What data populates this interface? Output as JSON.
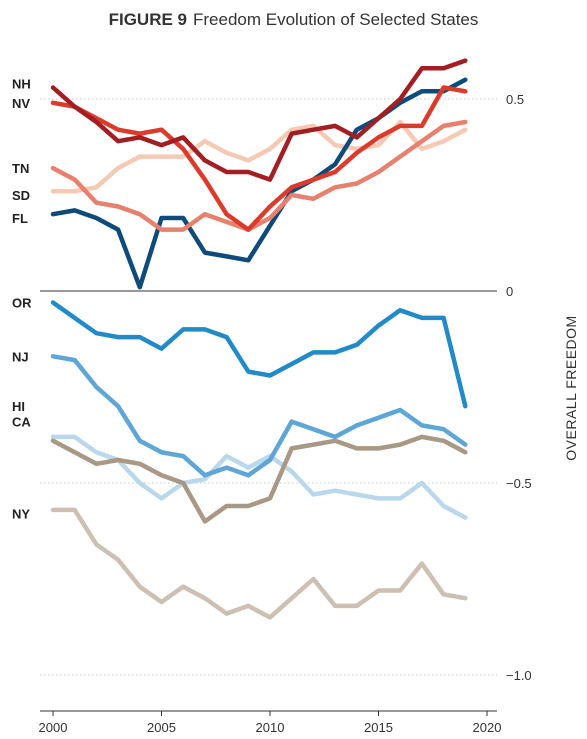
{
  "figure_label": "FIGURE 9",
  "title": "Freedom Evolution of Selected States",
  "chart_data": {
    "type": "line",
    "title": "FIGURE 9 Freedom Evolution of Selected States",
    "xlabel": "",
    "ylabel": "OVERALL FREEDOM",
    "xlim": [
      1999.8,
      2019.8
    ],
    "ylim": [
      -1.05,
      0.62
    ],
    "x_ticks": [
      2000,
      2005,
      2010,
      2015,
      2020
    ],
    "x_tick_labels": [
      "2000",
      "2005",
      "2010",
      "2015",
      "2020"
    ],
    "y_ticks": [
      0.5,
      0,
      -0.5,
      -1.0
    ],
    "y_tick_labels": [
      "0.5",
      "0",
      "−0.5",
      "−1.0"
    ],
    "grid": "horizontal",
    "legend": "state labels at left",
    "x": [
      2000,
      2001,
      2002,
      2003,
      2004,
      2005,
      2006,
      2007,
      2008,
      2009,
      2010,
      2011,
      2012,
      2013,
      2014,
      2015,
      2016,
      2017,
      2018,
      2019
    ],
    "series": [
      {
        "name": "NY",
        "color": "#cdbfb1",
        "values": [
          -0.57,
          -0.57,
          -0.66,
          -0.7,
          -0.77,
          -0.81,
          -0.77,
          -0.8,
          -0.84,
          -0.82,
          -0.85,
          -0.8,
          -0.75,
          -0.82,
          -0.82,
          -0.78,
          -0.78,
          -0.71,
          -0.79,
          -0.8
        ]
      },
      {
        "name": "HI",
        "color": "#b9d8ec",
        "values": [
          -0.38,
          -0.38,
          -0.42,
          -0.44,
          -0.5,
          -0.54,
          -0.5,
          -0.49,
          -0.43,
          -0.46,
          -0.43,
          -0.47,
          -0.53,
          -0.52,
          -0.53,
          -0.54,
          -0.54,
          -0.5,
          -0.56,
          -0.59
        ]
      },
      {
        "name": "CA",
        "color": "#a89885",
        "values": [
          -0.39,
          -0.42,
          -0.45,
          -0.44,
          -0.45,
          -0.48,
          -0.5,
          -0.6,
          -0.56,
          -0.56,
          -0.54,
          -0.41,
          -0.4,
          -0.39,
          -0.41,
          -0.41,
          -0.4,
          -0.38,
          -0.39,
          -0.42
        ]
      },
      {
        "name": "NJ",
        "color": "#5ea6d6",
        "values": [
          -0.17,
          -0.18,
          -0.25,
          -0.3,
          -0.39,
          -0.42,
          -0.43,
          -0.48,
          -0.46,
          -0.48,
          -0.44,
          -0.34,
          -0.36,
          -0.38,
          -0.35,
          -0.33,
          -0.31,
          -0.35,
          -0.36,
          -0.4
        ]
      },
      {
        "name": "OR",
        "color": "#238ac9",
        "values": [
          -0.03,
          -0.07,
          -0.11,
          -0.12,
          -0.12,
          -0.15,
          -0.1,
          -0.1,
          -0.12,
          -0.21,
          -0.22,
          -0.19,
          -0.16,
          -0.16,
          -0.14,
          -0.09,
          -0.05,
          -0.07,
          -0.07,
          -0.3
        ]
      },
      {
        "name": "SD",
        "color": "#f6c9b4",
        "values": [
          0.26,
          0.26,
          0.27,
          0.32,
          0.35,
          0.35,
          0.35,
          0.39,
          0.36,
          0.34,
          0.37,
          0.42,
          0.43,
          0.38,
          0.37,
          0.38,
          0.44,
          0.37,
          0.39,
          0.42
        ]
      },
      {
        "name": "FL",
        "color": "#0e4a7a",
        "values": [
          0.2,
          0.21,
          0.19,
          0.16,
          0.01,
          0.19,
          0.19,
          0.1,
          0.09,
          0.08,
          0.17,
          0.26,
          0.29,
          0.33,
          0.42,
          0.45,
          0.49,
          0.52,
          0.52,
          0.55
        ]
      },
      {
        "name": "TN",
        "color": "#e8806e",
        "values": [
          0.32,
          0.29,
          0.23,
          0.22,
          0.2,
          0.16,
          0.16,
          0.2,
          0.18,
          0.16,
          0.19,
          0.25,
          0.24,
          0.27,
          0.28,
          0.31,
          0.35,
          0.39,
          0.43,
          0.44
        ]
      },
      {
        "name": "NV",
        "color": "#dc3b2c",
        "values": [
          0.49,
          0.48,
          0.45,
          0.42,
          0.41,
          0.42,
          0.37,
          0.29,
          0.2,
          0.16,
          0.22,
          0.27,
          0.29,
          0.31,
          0.36,
          0.4,
          0.43,
          0.43,
          0.53,
          0.52
        ]
      },
      {
        "name": "NH",
        "color": "#a31e22",
        "values": [
          0.53,
          0.48,
          0.44,
          0.39,
          0.4,
          0.38,
          0.4,
          0.34,
          0.31,
          0.31,
          0.29,
          0.41,
          0.42,
          0.43,
          0.4,
          0.45,
          0.5,
          0.58,
          0.58,
          0.6
        ]
      }
    ]
  },
  "state_labels": [
    {
      "text": "NH",
      "y": 0.54
    },
    {
      "text": "NV",
      "y": 0.49
    },
    {
      "text": "TN",
      "y": 0.32
    },
    {
      "text": "SD",
      "y": 0.25
    },
    {
      "text": "FL",
      "y": 0.19
    },
    {
      "text": "OR",
      "y": -0.03
    },
    {
      "text": "NJ",
      "y": -0.17
    },
    {
      "text": "HI",
      "y": -0.3
    },
    {
      "text": "CA",
      "y": -0.34
    },
    {
      "text": "NY",
      "y": -0.58
    }
  ]
}
